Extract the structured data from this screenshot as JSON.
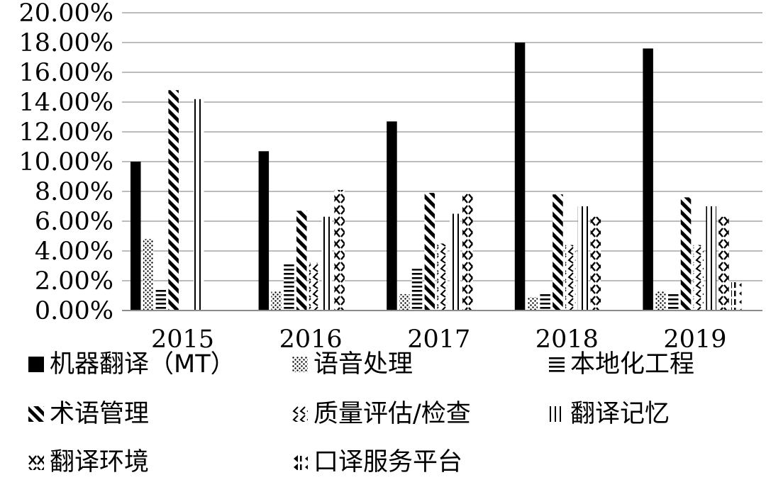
{
  "chart_data": {
    "type": "bar",
    "categories": [
      "2015",
      "2016",
      "2017",
      "2018",
      "2019"
    ],
    "y_ticks": [
      "0.00%",
      "2.00%",
      "4.00%",
      "6.00%",
      "8.00%",
      "10.00%",
      "12.00%",
      "14.00%",
      "16.00%",
      "18.00%",
      "20.00%"
    ],
    "ylim": [
      0,
      20
    ],
    "grid": true,
    "legend_position": "bottom",
    "series": [
      {
        "name": "机器翻译（MT）",
        "pattern": "solid",
        "values": [
          10.0,
          10.7,
          12.7,
          18.0,
          17.6
        ]
      },
      {
        "name": "语音处理",
        "pattern": "dots",
        "values": [
          4.8,
          1.3,
          1.1,
          0.9,
          1.3
        ]
      },
      {
        "name": "本地化工程",
        "pattern": "horizontal-lines",
        "values": [
          1.5,
          3.2,
          2.8,
          1.1,
          1.1
        ]
      },
      {
        "name": "术语管理",
        "pattern": "diagonal-dashes",
        "values": [
          14.8,
          6.7,
          7.9,
          7.8,
          7.6
        ]
      },
      {
        "name": "质量评估/检查",
        "pattern": "chevrons",
        "values": [
          0.0,
          3.2,
          4.5,
          4.4,
          4.4
        ]
      },
      {
        "name": "翻译记忆",
        "pattern": "vertical-lines",
        "values": [
          14.2,
          6.3,
          6.5,
          7.0,
          7.0
        ]
      },
      {
        "name": "翻译环境",
        "pattern": "crosses",
        "values": [
          0.0,
          8.1,
          7.9,
          6.3,
          6.3
        ]
      },
      {
        "name": "口译服务平台",
        "pattern": "triangles",
        "values": [
          0.0,
          0.0,
          0.0,
          0.0,
          1.9
        ]
      }
    ]
  }
}
